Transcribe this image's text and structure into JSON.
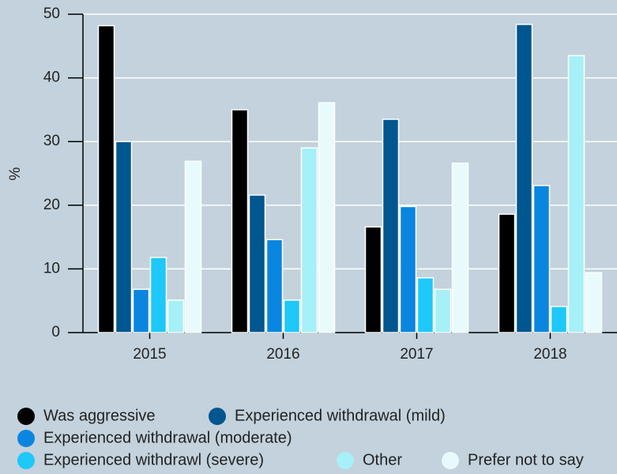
{
  "chart_data": {
    "type": "bar",
    "ylabel": "%",
    "categories": [
      "2015",
      "2016",
      "2017",
      "2018"
    ],
    "series": [
      {
        "name": "Was aggressive",
        "color": "#000000",
        "values": [
          48.2,
          35,
          16.6,
          18.6
        ]
      },
      {
        "name": "Experienced withdrawal (mild)",
        "color": "#00568f",
        "values": [
          30,
          21.6,
          33.5,
          48.4
        ]
      },
      {
        "name": "Experienced withdrawal (moderate)",
        "color": "#0a86e0",
        "values": [
          6.8,
          14.6,
          19.8,
          23.1
        ]
      },
      {
        "name": "Experienced withdrawl (severe)",
        "color": "#1ec8f8",
        "values": [
          11.8,
          5.1,
          8.6,
          4.1
        ]
      },
      {
        "name": "Other",
        "color": "#a6f0f8",
        "values": [
          5.1,
          29,
          6.8,
          43.5
        ]
      },
      {
        "name": "Prefer not to say",
        "color": "#e8fafc",
        "values": [
          26.9,
          36.1,
          26.6,
          9.4
        ]
      }
    ],
    "ylim": [
      0,
      50
    ],
    "yticks": [
      0,
      10,
      20,
      30,
      40,
      50
    ],
    "grid": true,
    "legend": "bottom"
  }
}
